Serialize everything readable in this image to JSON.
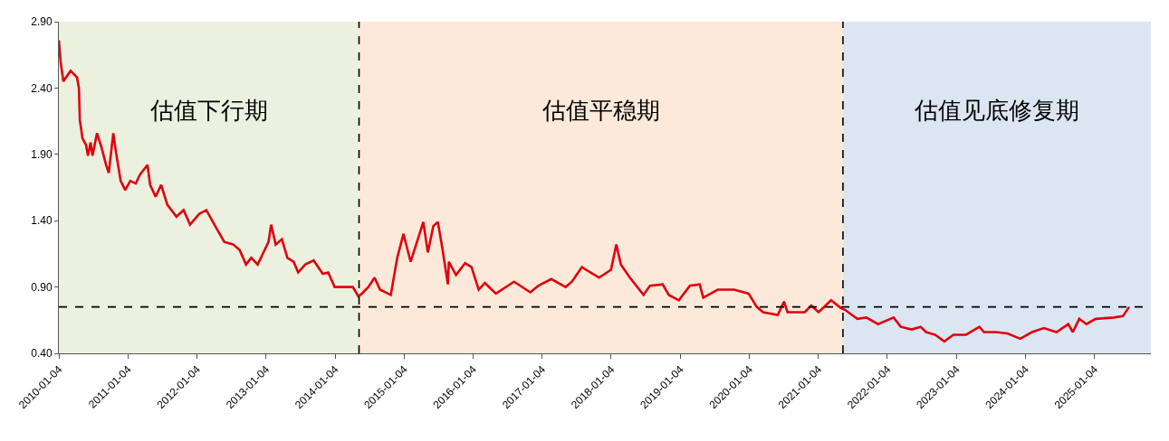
{
  "chart_data": {
    "type": "line",
    "x": [
      "2010-01-04",
      "2010-01-14",
      "2010-01-28",
      "2010-03-07",
      "2010-04-10",
      "2010-04-20",
      "2010-04-25",
      "2010-05-09",
      "2010-05-28",
      "2010-06-07",
      "2010-06-21",
      "2010-07-01",
      "2010-07-25",
      "2010-08-18",
      "2010-09-11",
      "2010-09-25",
      "2010-10-19",
      "2010-11-03",
      "2010-11-27",
      "2010-12-21",
      "2011-01-17",
      "2011-02-15",
      "2011-03-10",
      "2011-04-18",
      "2011-05-02",
      "2011-05-31",
      "2011-06-29",
      "2011-08-01",
      "2011-09-18",
      "2011-10-26",
      "2011-11-29",
      "2012-01-16",
      "2012-02-23",
      "2012-04-10",
      "2012-05-28",
      "2012-07-15",
      "2012-08-17",
      "2012-09-20",
      "2012-10-18",
      "2012-11-21",
      "2013-01-17",
      "2013-01-31",
      "2013-02-24",
      "2013-03-29",
      "2013-04-27",
      "2013-05-30",
      "2013-06-23",
      "2013-07-31",
      "2013-09-13",
      "2013-10-31",
      "2013-11-29",
      "2014-01-02",
      "2014-02-19",
      "2014-04-08",
      "2014-05-07",
      "2014-05-26",
      "2014-06-29",
      "2014-08-01",
      "2014-08-30",
      "2014-10-26",
      "2014-11-29",
      "2015-01-01",
      "2015-02-08",
      "2015-04-16",
      "2015-05-10",
      "2015-06-08",
      "2015-07-02",
      "2015-07-26",
      "2015-08-24",
      "2015-08-29",
      "2015-10-06",
      "2015-11-23",
      "2015-12-27",
      "2016-02-03",
      "2016-03-07",
      "2016-05-04",
      "2016-08-08",
      "2016-11-02",
      "2016-12-15",
      "2017-02-21",
      "2017-05-08",
      "2017-06-10",
      "2017-08-02",
      "2017-09-04",
      "2017-11-01",
      "2018-01-03",
      "2018-01-31",
      "2018-02-24",
      "2018-04-13",
      "2018-06-24",
      "2018-07-28",
      "2018-10-03",
      "2018-11-05",
      "2018-12-28",
      "2019-02-24",
      "2019-04-17",
      "2019-05-06",
      "2019-07-22",
      "2019-10-16",
      "2020-01-01",
      "2020-02-13",
      "2020-03-18",
      "2020-06-03",
      "2020-07-06",
      "2020-07-25",
      "2020-10-24",
      "2020-11-27",
      "2021-01-05",
      "2021-03-12",
      "2021-05-04",
      "2021-05-23",
      "2021-07-29",
      "2021-09-15",
      "2021-11-16",
      "2022-02-06",
      "2022-03-16",
      "2022-05-12",
      "2022-06-29",
      "2022-07-28",
      "2022-09-14",
      "2022-11-01",
      "2022-12-19",
      "2023-02-24",
      "2023-05-06",
      "2023-05-30",
      "2023-07-31",
      "2023-10-02",
      "2023-12-08",
      "2024-02-08",
      "2024-04-11",
      "2024-06-17",
      "2024-08-18",
      "2024-09-11",
      "2024-10-15",
      "2024-11-22",
      "2025-01-10",
      "2025-04-16",
      "2025-06-03",
      "2025-07-06"
    ],
    "series": [
      {
        "color": "#e0000f",
        "values": [
          2.76,
          2.59,
          2.45,
          2.53,
          2.48,
          2.4,
          2.16,
          2.02,
          1.97,
          1.89,
          1.99,
          1.89,
          2.06,
          1.95,
          1.82,
          1.76,
          2.06,
          1.91,
          1.7,
          1.63,
          1.7,
          1.68,
          1.75,
          1.82,
          1.67,
          1.58,
          1.67,
          1.52,
          1.43,
          1.48,
          1.37,
          1.45,
          1.48,
          1.36,
          1.24,
          1.22,
          1.18,
          1.07,
          1.12,
          1.07,
          1.24,
          1.37,
          1.22,
          1.26,
          1.12,
          1.09,
          1.01,
          1.07,
          1.1,
          1.0,
          1.01,
          0.9,
          0.9,
          0.9,
          0.83,
          0.85,
          0.9,
          0.97,
          0.88,
          0.84,
          1.12,
          1.3,
          1.09,
          1.39,
          1.16,
          1.36,
          1.39,
          1.19,
          0.92,
          1.09,
          0.99,
          1.08,
          1.05,
          0.88,
          0.93,
          0.85,
          0.94,
          0.86,
          0.91,
          0.96,
          0.9,
          0.94,
          1.05,
          1.02,
          0.97,
          1.03,
          1.22,
          1.07,
          0.97,
          0.84,
          0.91,
          0.92,
          0.84,
          0.8,
          0.91,
          0.92,
          0.82,
          0.88,
          0.88,
          0.85,
          0.75,
          0.71,
          0.69,
          0.79,
          0.71,
          0.71,
          0.76,
          0.71,
          0.8,
          0.74,
          0.73,
          0.66,
          0.67,
          0.62,
          0.67,
          0.6,
          0.58,
          0.6,
          0.56,
          0.54,
          0.49,
          0.54,
          0.54,
          0.6,
          0.56,
          0.56,
          0.55,
          0.51,
          0.56,
          0.59,
          0.56,
          0.62,
          0.56,
          0.66,
          0.62,
          0.66,
          0.67,
          0.68,
          0.75
        ]
      }
    ],
    "xlim": [
      "2010-01-04",
      "2025-10-29"
    ],
    "xticks": [
      "2010-01-04",
      "2011-01-04",
      "2012-01-04",
      "2013-01-04",
      "2014-01-04",
      "2015-01-04",
      "2016-01-04",
      "2017-01-04",
      "2018-01-04",
      "2019-01-04",
      "2020-01-04",
      "2021-01-04",
      "2022-01-04",
      "2023-01-04",
      "2024-01-04",
      "2025-01-04"
    ],
    "ylim": [
      0.4,
      2.9
    ],
    "yticks": [
      {
        "value": 0.4,
        "label": "0.40"
      },
      {
        "value": 0.9,
        "label": "0.90"
      },
      {
        "value": 1.4,
        "label": "1.40"
      },
      {
        "value": 1.9,
        "label": "1.90"
      },
      {
        "value": 2.4,
        "label": "2.40"
      },
      {
        "value": 2.9,
        "label": "2.90"
      }
    ],
    "bands": [
      {
        "axis": "x",
        "from": "2010-01-04",
        "to": "2014-05-11",
        "label": "估值下行期",
        "color": "#ebf1de"
      },
      {
        "axis": "x",
        "from": "2014-05-11",
        "to": "2021-05-14",
        "label": "估值平稳期",
        "color": "#fde9d9"
      },
      {
        "axis": "x",
        "from": "2021-05-14",
        "to": "2025-10-29",
        "label": "估值见底修复期",
        "color": "#dce6f2"
      }
    ],
    "ref_lines": [
      {
        "axis": "y",
        "value": 0.75,
        "color": "#000000",
        "line_style": "dashed"
      },
      {
        "axis": "x",
        "value": "2014-05-11",
        "color": "#000000",
        "line_style": "dashed"
      },
      {
        "axis": "x",
        "value": "2021-05-14",
        "color": "#000000",
        "line_style": "dashed"
      }
    ],
    "grid": false,
    "marker": "none",
    "line_style": "solid"
  }
}
